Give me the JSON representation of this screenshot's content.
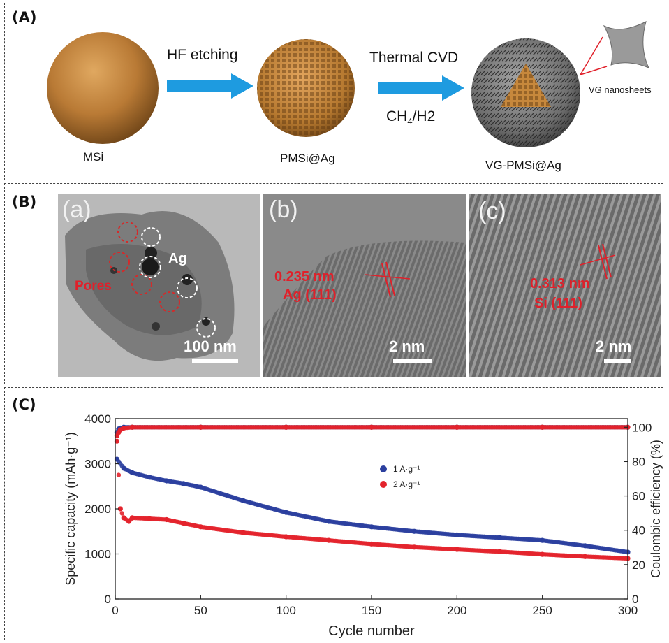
{
  "panel_a": {
    "label": "(A)",
    "step1_label": "MSi",
    "step2_label": "PMSi@Ag",
    "step3_label": "VG-PMSi@Ag",
    "arrow1_label": "HF etching",
    "arrow2_label": "Thermal CVD",
    "arrow2_sublabel_main": "CH",
    "arrow2_sublabel_sub": "4",
    "arrow2_sublabel_tail": "/H2",
    "inset_label": "VG nanosheets"
  },
  "panel_b": {
    "label": "(B)",
    "images": [
      {
        "tag": "(a)",
        "scale": "100 nm",
        "ag_label": "Ag",
        "pores_label": "Pores"
      },
      {
        "tag": "(b)",
        "scale": "2 nm",
        "spacing": "0.235 nm",
        "plane": "Ag (111)"
      },
      {
        "tag": "(c)",
        "scale": "2 nm",
        "spacing": "0.313 nm",
        "plane": "Si (111)"
      }
    ]
  },
  "panel_c": {
    "label": "(C)",
    "colors": {
      "blue": "#2b3f9e",
      "red": "#e3232c"
    }
  },
  "chart_data": {
    "type": "scatter",
    "xlabel": "Cycle number",
    "ylabel": "Specific capacity (mAh·g⁻¹)",
    "y2label": "Coulombic efficiency (%)",
    "xlim": [
      0,
      300
    ],
    "ylim": [
      0,
      4000
    ],
    "y2lim": [
      0,
      105
    ],
    "xticks": [
      0,
      50,
      100,
      150,
      200,
      250,
      300
    ],
    "yticks": [
      0,
      1000,
      2000,
      3000,
      4000
    ],
    "y2ticks": [
      0,
      20,
      40,
      60,
      80,
      100
    ],
    "legend_position": "center",
    "series": [
      {
        "name": "1 A·g⁻¹",
        "color": "#2b3f9e",
        "axis": "left",
        "x": [
          1,
          5,
          10,
          20,
          30,
          40,
          50,
          75,
          100,
          125,
          150,
          175,
          200,
          225,
          250,
          275,
          300
        ],
        "y": [
          3100,
          2900,
          2800,
          2700,
          2620,
          2560,
          2480,
          2180,
          1920,
          1720,
          1600,
          1500,
          1420,
          1360,
          1300,
          1180,
          1040
        ]
      },
      {
        "name": "2 A·g⁻¹",
        "color": "#e3232c",
        "axis": "left",
        "x": [
          1,
          3,
          5,
          8,
          10,
          20,
          30,
          40,
          50,
          75,
          100,
          125,
          150,
          175,
          200,
          225,
          250,
          275,
          300
        ],
        "y": [
          3500,
          2000,
          1800,
          1720,
          1800,
          1780,
          1760,
          1680,
          1600,
          1470,
          1380,
          1300,
          1220,
          1150,
          1100,
          1050,
          990,
          940,
          900
        ]
      },
      {
        "name": "",
        "color": "#2b3f9e",
        "axis": "right",
        "x": [
          1,
          2,
          3,
          5,
          10,
          50,
          100,
          150,
          200,
          250,
          300
        ],
        "y": [
          97,
          99,
          99.5,
          100,
          100,
          100,
          100,
          100,
          100,
          100,
          100
        ]
      },
      {
        "name": "",
        "color": "#e3232c",
        "axis": "right",
        "x": [
          1,
          2,
          3,
          5,
          10,
          50,
          100,
          150,
          200,
          250,
          300
        ],
        "y": [
          95,
          97,
          98.5,
          99.5,
          100,
          100,
          100,
          100,
          100,
          100,
          100
        ]
      }
    ]
  }
}
